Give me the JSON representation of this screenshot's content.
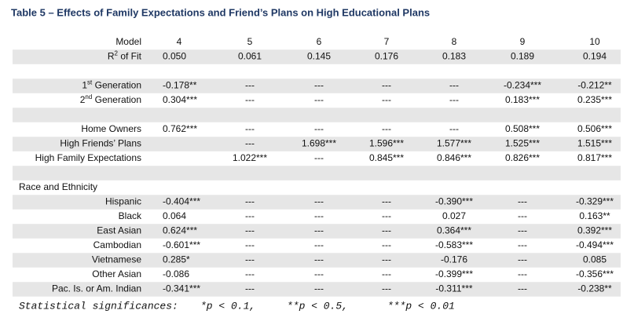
{
  "title": "Table 5 – Effects of Family Expectations and Friend’s Plans on High Educational Plans",
  "table": {
    "header": {
      "label": "Model",
      "columns": [
        "4",
        "5",
        "6",
        "7",
        "8",
        "9",
        "10"
      ]
    },
    "sections": [
      {
        "rows": [
          {
            "label": [
              "R",
              "2",
              " of Fit"
            ],
            "cells": [
              "0.050",
              "0.061",
              "0.145",
              "0.176",
              "0.183",
              "0.189",
              "0.194"
            ]
          }
        ]
      },
      {
        "rows": [
          {
            "label": [
              "1",
              "st",
              " Generation"
            ],
            "cells": [
              "-0.178**",
              "---",
              "---",
              "---",
              "---",
              "-0.234***",
              "-0.212**"
            ]
          },
          {
            "label": [
              "2",
              "nd",
              " Generation"
            ],
            "cells": [
              "0.304***",
              "---",
              "---",
              "---",
              "---",
              "0.183***",
              "0.235***"
            ]
          }
        ]
      },
      {
        "rows": [
          {
            "label": "Home Owners",
            "cells": [
              "0.762***",
              "---",
              "---",
              "---",
              "---",
              "0.508***",
              "0.506***"
            ]
          },
          {
            "label": "High Friends’ Plans",
            "cells": [
              null,
              "---",
              "1.698***",
              "1.596***",
              "1.577***",
              "1.525***",
              "1.515***"
            ]
          },
          {
            "label": "High Family Expectations",
            "cells": [
              null,
              "1.022***",
              "---",
              "0.845***",
              "0.846***",
              "0.826***",
              "0.817***"
            ]
          }
        ]
      },
      {
        "heading": "Race and Ethnicity",
        "rows": [
          {
            "label": "Hispanic",
            "cells": [
              "-0.404***",
              "---",
              "---",
              "---",
              "-0.390***",
              "---",
              "-0.329***"
            ]
          },
          {
            "label": "Black",
            "cells": [
              "0.064",
              "---",
              "---",
              "---",
              "0.027",
              "---",
              "0.163**"
            ]
          },
          {
            "label": "East Asian",
            "cells": [
              "0.624***",
              "---",
              "---",
              "---",
              "0.364***",
              "---",
              "0.392***"
            ]
          },
          {
            "label": "Cambodian",
            "cells": [
              "-0.601***",
              "---",
              "---",
              "---",
              "-0.583***",
              "---",
              "-0.494***"
            ]
          },
          {
            "label": "Vietnamese",
            "cells": [
              "0.285*",
              "---",
              "---",
              "---",
              "-0.176",
              "---",
              "0.085"
            ]
          },
          {
            "label": "Other Asian",
            "cells": [
              "-0.086",
              "---",
              "---",
              "---",
              "-0.399***",
              "---",
              "-0.356***"
            ]
          },
          {
            "label": "Pac. Is. or Am. Indian",
            "cells": [
              "-0.341***",
              "---",
              "---",
              "---",
              "-0.311***",
              "---",
              "-0.238**"
            ]
          }
        ]
      }
    ]
  },
  "footnote": {
    "label": "Statistical significances:",
    "items": [
      "*p < 0.1,",
      "**p < 0.5,",
      "***p < 0.01"
    ]
  }
}
